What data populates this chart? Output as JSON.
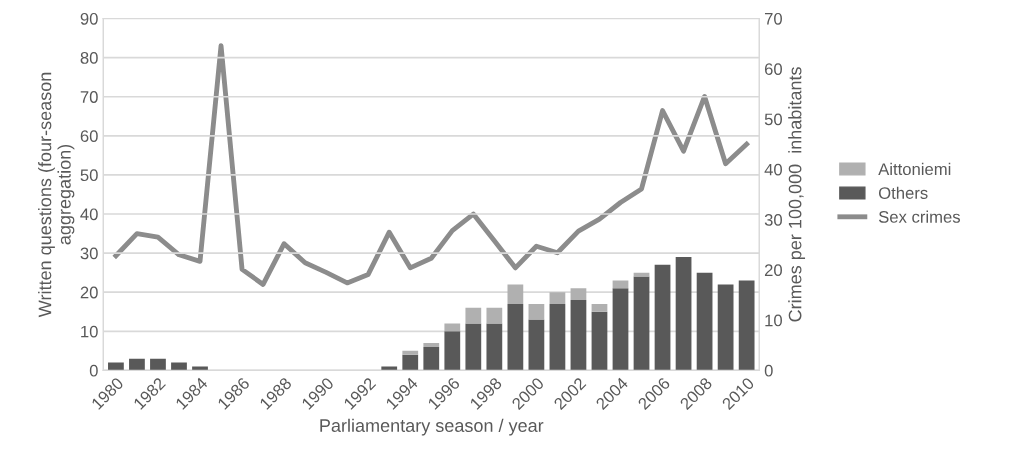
{
  "chart_data": {
    "type": "bar",
    "stacked": true,
    "xlabel": "Parliamentary season / year",
    "ylabel": "Written questions (four-season\naggregation)",
    "y2label": "Crimes per 100,000  inhabitants",
    "categories": [
      "1980",
      null,
      "1982",
      null,
      "1984",
      null,
      "1986",
      null,
      "1988",
      null,
      "1990",
      null,
      "1992",
      null,
      "1994",
      null,
      "1996",
      null,
      "1998",
      null,
      "2000",
      null,
      "2002",
      null,
      "2004",
      null,
      "2006",
      null,
      "2008",
      null,
      "2010"
    ],
    "series": [
      {
        "name": "Others",
        "color": "#595959",
        "values": [
          2,
          3,
          3,
          2,
          1,
          0,
          0,
          0,
          0,
          0,
          0,
          0,
          0,
          1,
          4,
          6,
          10,
          12,
          12,
          17,
          13,
          17,
          18,
          15,
          21,
          24,
          27,
          29,
          25,
          22,
          23
        ]
      },
      {
        "name": "Aittoniemi",
        "color": "#b0b0b0",
        "values": [
          0,
          0,
          0,
          0,
          0,
          0,
          0,
          0,
          0,
          0,
          0,
          0,
          0,
          0,
          1,
          1,
          2,
          4,
          4,
          5,
          4,
          3,
          3,
          2,
          2,
          1,
          0,
          0,
          0,
          0,
          0
        ]
      },
      {
        "name": "Sex crimes",
        "type": "line",
        "axis": "y2",
        "color": "#8c8c8c",
        "values": [
          22.8,
          27.2,
          26.5,
          23.0,
          21.7,
          64.6,
          20.1,
          17.1,
          25.2,
          21.4,
          19.5,
          17.4,
          19.1,
          27.5,
          20.4,
          22.3,
          27.8,
          31.1,
          25.8,
          20.4,
          24.7,
          23.4,
          27.7,
          30.1,
          33.4,
          36.1,
          51.7,
          43.6,
          54.5,
          41.1,
          45.0
        ]
      }
    ],
    "ylim": [
      0,
      90
    ],
    "yticks": [
      0,
      10,
      20,
      30,
      40,
      50,
      60,
      70,
      80,
      90
    ],
    "y2lim": [
      0,
      70
    ],
    "y2ticks": [
      0,
      10,
      20,
      30,
      40,
      50,
      60,
      70
    ],
    "grid": "y",
    "legend": "right",
    "marker": "none",
    "line_style": "solid"
  }
}
